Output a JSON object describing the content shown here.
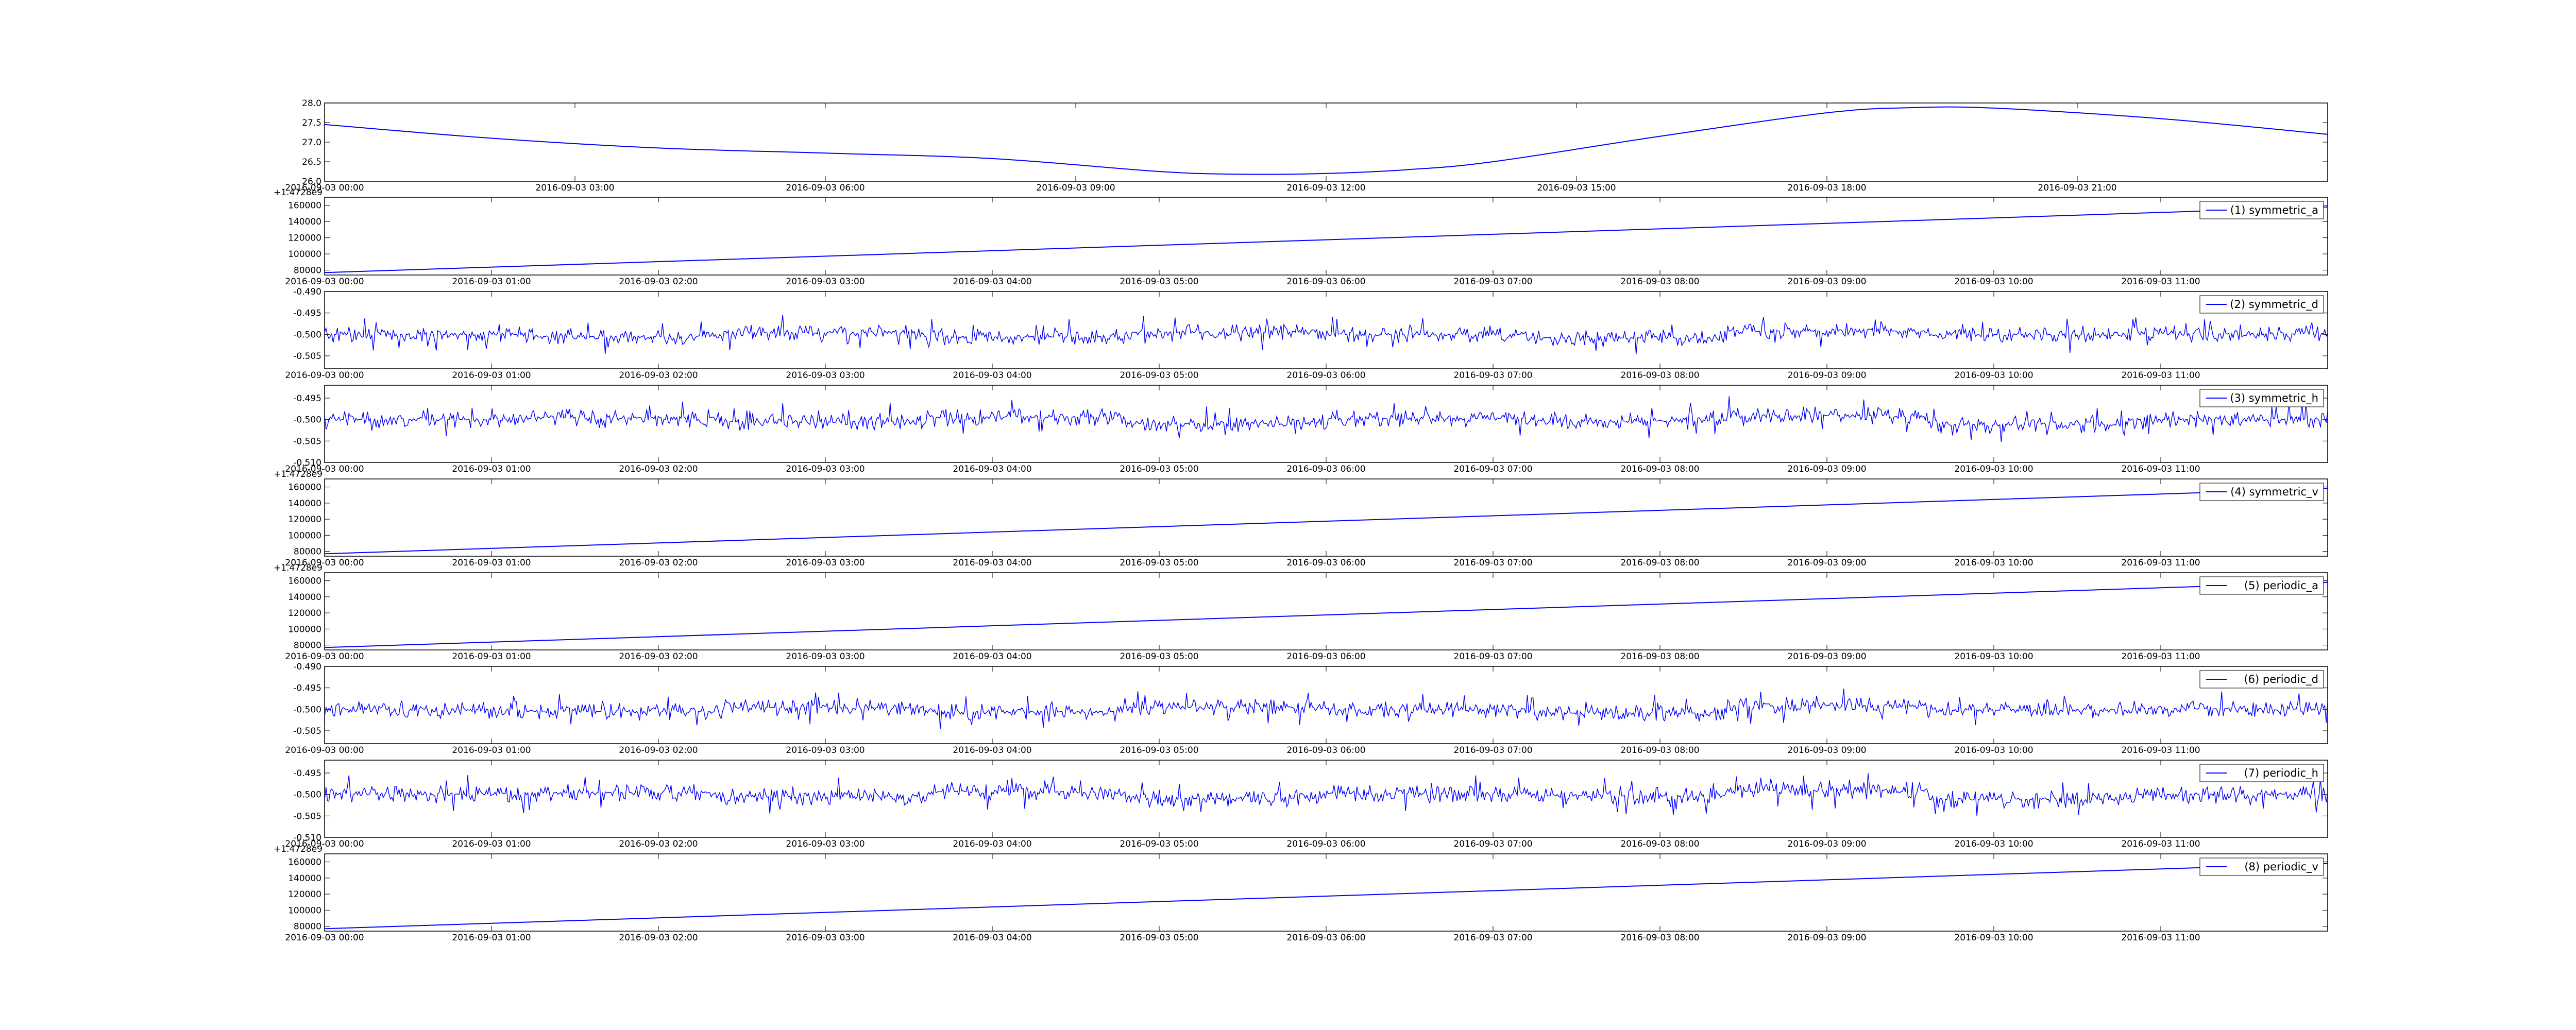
{
  "colors": {
    "line": "#0000ff",
    "axes": "#000000",
    "background": "#ffffff"
  },
  "chart_data": [
    {
      "type": "line",
      "title": "",
      "xlabel": "",
      "ylabel": "",
      "legend": null,
      "x_ticks": [
        "2016-09-03 00:00",
        "2016-09-03 03:00",
        "2016-09-03 06:00",
        "2016-09-03 09:00",
        "2016-09-03 12:00",
        "2016-09-03 15:00",
        "2016-09-03 18:00",
        "2016-09-03 21:00"
      ],
      "x_range": [
        "2016-09-03 00:00",
        "2016-09-04 00:00"
      ],
      "y_ticks": [
        "26.0",
        "26.5",
        "27.0",
        "27.5",
        "28.0"
      ],
      "ylim": [
        26.0,
        28.0
      ],
      "series": [
        {
          "x": [
            "2016-09-03 00:00",
            "2016-09-03 02:00",
            "2016-09-03 04:00",
            "2016-09-03 06:00",
            "2016-09-03 08:00",
            "2016-09-03 10:00",
            "2016-09-03 11:00",
            "2016-09-03 12:00",
            "2016-09-03 13:00",
            "2016-09-03 14:00",
            "2016-09-03 16:00",
            "2016-09-03 18:00",
            "2016-09-03 19:00",
            "2016-09-03 20:00",
            "2016-09-03 22:00",
            "2016-09-04 00:00"
          ],
          "values": [
            27.45,
            27.1,
            26.85,
            26.72,
            26.58,
            26.25,
            26.18,
            26.2,
            26.3,
            26.5,
            27.15,
            27.75,
            27.88,
            27.87,
            27.6,
            27.2
          ]
        }
      ]
    },
    {
      "type": "line",
      "offset_text": "+1.4728e9",
      "x_ticks": [
        "2016-09-03 00:00",
        "2016-09-03 01:00",
        "2016-09-03 02:00",
        "2016-09-03 03:00",
        "2016-09-03 04:00",
        "2016-09-03 05:00",
        "2016-09-03 06:00",
        "2016-09-03 07:00",
        "2016-09-03 08:00",
        "2016-09-03 09:00",
        "2016-09-03 10:00",
        "2016-09-03 11:00"
      ],
      "x_range": [
        "2016-09-03 00:00",
        "2016-09-03 12:00"
      ],
      "y_ticks": [
        "80000",
        "100000",
        "120000",
        "140000",
        "160000"
      ],
      "ylim": [
        74000,
        170000
      ],
      "legend": {
        "position": "top-right"
      },
      "series": [
        {
          "name": "(1) symmetric_a",
          "x": [
            "2016-09-03 00:00",
            "2016-09-03 12:00"
          ],
          "values": [
            77000,
            158000
          ]
        }
      ]
    },
    {
      "type": "line",
      "x_ticks": [
        "2016-09-03 00:00",
        "2016-09-03 01:00",
        "2016-09-03 02:00",
        "2016-09-03 03:00",
        "2016-09-03 04:00",
        "2016-09-03 05:00",
        "2016-09-03 06:00",
        "2016-09-03 07:00",
        "2016-09-03 08:00",
        "2016-09-03 09:00",
        "2016-09-03 10:00",
        "2016-09-03 11:00"
      ],
      "x_range": [
        "2016-09-03 00:00",
        "2016-09-03 12:00"
      ],
      "y_ticks": [
        "-0.505",
        "-0.500",
        "-0.495",
        "-0.490"
      ],
      "ylim": [
        -0.508,
        -0.49
      ],
      "legend": {
        "position": "top-right"
      },
      "series": [
        {
          "name": "(2) symmetric_d",
          "baseline": -0.5,
          "noise_amplitude": 0.0042,
          "values": [
            -0.5,
            -0.5019,
            -0.4986,
            -0.5024,
            -0.4979,
            -0.5002,
            -0.5033,
            -0.4968,
            -0.5007,
            -0.4994
          ]
        }
      ]
    },
    {
      "type": "line",
      "x_ticks": [
        "2016-09-03 00:00",
        "2016-09-03 01:00",
        "2016-09-03 02:00",
        "2016-09-03 03:00",
        "2016-09-03 04:00",
        "2016-09-03 05:00",
        "2016-09-03 06:00",
        "2016-09-03 07:00",
        "2016-09-03 08:00",
        "2016-09-03 09:00",
        "2016-09-03 10:00",
        "2016-09-03 11:00"
      ],
      "x_range": [
        "2016-09-03 00:00",
        "2016-09-03 12:00"
      ],
      "y_ticks": [
        "-0.510",
        "-0.505",
        "-0.500",
        "-0.495"
      ],
      "ylim": [
        -0.51,
        -0.492
      ],
      "legend": {
        "position": "top-right"
      },
      "series": [
        {
          "name": "(3) symmetric_h",
          "baseline": -0.5,
          "noise_amplitude": 0.0045,
          "values": [
            -0.5,
            -0.4982,
            -0.5021,
            -0.4975,
            -0.5036,
            -0.4991,
            -0.5014,
            -0.4962,
            -0.5048,
            -0.4997
          ]
        }
      ]
    },
    {
      "type": "line",
      "offset_text": "+1.4728e9",
      "x_ticks": [
        "2016-09-03 00:00",
        "2016-09-03 01:00",
        "2016-09-03 02:00",
        "2016-09-03 03:00",
        "2016-09-03 04:00",
        "2016-09-03 05:00",
        "2016-09-03 06:00",
        "2016-09-03 07:00",
        "2016-09-03 08:00",
        "2016-09-03 09:00",
        "2016-09-03 10:00",
        "2016-09-03 11:00"
      ],
      "x_range": [
        "2016-09-03 00:00",
        "2016-09-03 12:00"
      ],
      "y_ticks": [
        "80000",
        "100000",
        "120000",
        "140000",
        "160000"
      ],
      "ylim": [
        74000,
        170000
      ],
      "legend": {
        "position": "top-right"
      },
      "series": [
        {
          "name": "(4) symmetric_v",
          "x": [
            "2016-09-03 00:00",
            "2016-09-03 12:00"
          ],
          "values": [
            77000,
            158000
          ]
        }
      ]
    },
    {
      "type": "line",
      "offset_text": "+1.4728e9",
      "x_ticks": [
        "2016-09-03 00:00",
        "2016-09-03 01:00",
        "2016-09-03 02:00",
        "2016-09-03 03:00",
        "2016-09-03 04:00",
        "2016-09-03 05:00",
        "2016-09-03 06:00",
        "2016-09-03 07:00",
        "2016-09-03 08:00",
        "2016-09-03 09:00",
        "2016-09-03 10:00",
        "2016-09-03 11:00"
      ],
      "x_range": [
        "2016-09-03 00:00",
        "2016-09-03 12:00"
      ],
      "y_ticks": [
        "80000",
        "100000",
        "120000",
        "140000",
        "160000"
      ],
      "ylim": [
        74000,
        170000
      ],
      "legend": {
        "position": "top-right"
      },
      "series": [
        {
          "name": "(5) periodic_a",
          "x": [
            "2016-09-03 00:00",
            "2016-09-03 12:00"
          ],
          "values": [
            77000,
            158000
          ]
        }
      ]
    },
    {
      "type": "line",
      "x_ticks": [
        "2016-09-03 00:00",
        "2016-09-03 01:00",
        "2016-09-03 02:00",
        "2016-09-03 03:00",
        "2016-09-03 04:00",
        "2016-09-03 05:00",
        "2016-09-03 06:00",
        "2016-09-03 07:00",
        "2016-09-03 08:00",
        "2016-09-03 09:00",
        "2016-09-03 10:00",
        "2016-09-03 11:00"
      ],
      "x_range": [
        "2016-09-03 00:00",
        "2016-09-03 12:00"
      ],
      "y_ticks": [
        "-0.505",
        "-0.500",
        "-0.495",
        "-0.490"
      ],
      "ylim": [
        -0.508,
        -0.49
      ],
      "legend": {
        "position": "top-right"
      },
      "series": [
        {
          "name": "(6) periodic_d",
          "baseline": -0.5,
          "noise_amplitude": 0.0042,
          "values": [
            -0.5,
            -0.5019,
            -0.4986,
            -0.5024,
            -0.4979,
            -0.5002,
            -0.5033,
            -0.4968,
            -0.5007,
            -0.4994
          ]
        }
      ]
    },
    {
      "type": "line",
      "x_ticks": [
        "2016-09-03 00:00",
        "2016-09-03 01:00",
        "2016-09-03 02:00",
        "2016-09-03 03:00",
        "2016-09-03 04:00",
        "2016-09-03 05:00",
        "2016-09-03 06:00",
        "2016-09-03 07:00",
        "2016-09-03 08:00",
        "2016-09-03 09:00",
        "2016-09-03 10:00",
        "2016-09-03 11:00"
      ],
      "x_range": [
        "2016-09-03 00:00",
        "2016-09-03 12:00"
      ],
      "y_ticks": [
        "-0.510",
        "-0.505",
        "-0.500",
        "-0.495"
      ],
      "ylim": [
        -0.51,
        -0.492
      ],
      "legend": {
        "position": "top-right"
      },
      "series": [
        {
          "name": "(7) periodic_h",
          "baseline": -0.5,
          "noise_amplitude": 0.0045,
          "values": [
            -0.5,
            -0.4982,
            -0.5021,
            -0.4975,
            -0.5036,
            -0.4991,
            -0.5014,
            -0.4962,
            -0.5048,
            -0.4997
          ]
        }
      ]
    },
    {
      "type": "line",
      "offset_text": "+1.4728e9",
      "x_ticks": [
        "2016-09-03 00:00",
        "2016-09-03 01:00",
        "2016-09-03 02:00",
        "2016-09-03 03:00",
        "2016-09-03 04:00",
        "2016-09-03 05:00",
        "2016-09-03 06:00",
        "2016-09-03 07:00",
        "2016-09-03 08:00",
        "2016-09-03 09:00",
        "2016-09-03 10:00",
        "2016-09-03 11:00"
      ],
      "x_range": [
        "2016-09-03 00:00",
        "2016-09-03 12:00"
      ],
      "y_ticks": [
        "80000",
        "100000",
        "120000",
        "140000",
        "160000"
      ],
      "ylim": [
        74000,
        170000
      ],
      "legend": {
        "position": "top-right"
      },
      "series": [
        {
          "name": "(8) periodic_v",
          "x": [
            "2016-09-03 00:00",
            "2016-09-03 12:00"
          ],
          "values": [
            77000,
            158000
          ]
        }
      ]
    }
  ]
}
